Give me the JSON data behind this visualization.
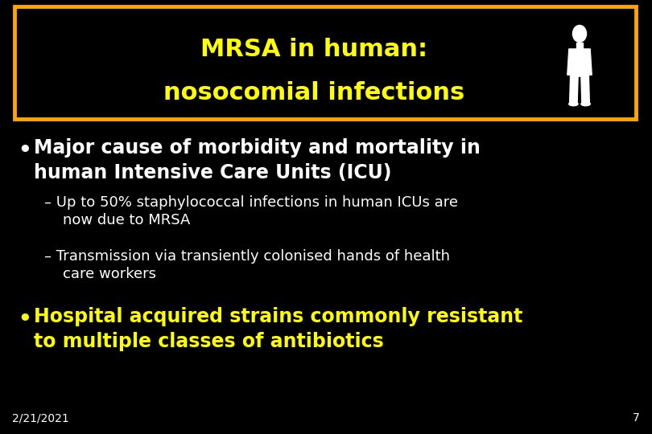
{
  "background_color": "#000000",
  "title_line1": "MRSA in human:",
  "title_line2": "nosocomial infections",
  "title_color": "#FFFF00",
  "title_box_edge_color": "#FFA500",
  "title_box_bg": "#000000",
  "bullet1_text": "Major cause of morbidity and mortality in\nhuman Intensive Care Units (ICU)",
  "bullet1_color": "#FFFFFF",
  "sub1_text": "– Up to 50% staphylococcal infections in human ICUs are\n    now due to MRSA",
  "sub2_text": "– Transmission via transiently colonised hands of health\n    care workers",
  "sub_color": "#FFFFFF",
  "bullet2_text": "Hospital acquired strains commonly resistant\nto multiple classes of antibiotics",
  "bullet2_color": "#FFFF00",
  "date_text": "2/21/2021",
  "page_num": "7",
  "footer_color": "#FFFFFF",
  "fig_width": 8.1,
  "fig_height": 5.4,
  "dpi": 100
}
